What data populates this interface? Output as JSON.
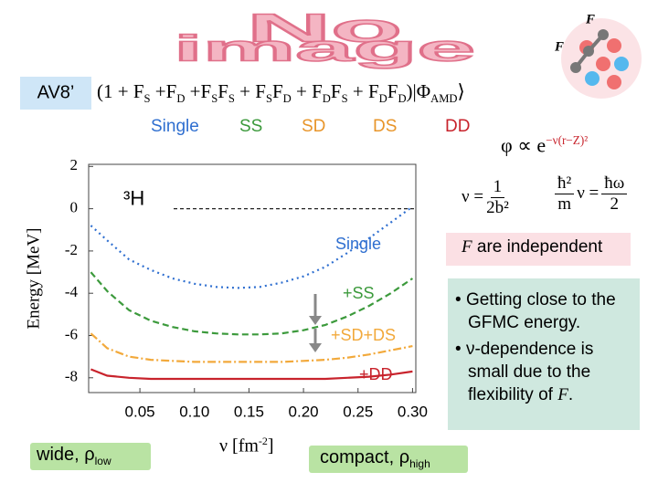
{
  "chart_data": {
    "type": "line",
    "xlabel": {
      "text": "ν [fm",
      "sup": "-2",
      "close": "]"
    },
    "ylabel": "Energy [MeV]",
    "x": [
      0.005,
      0.02,
      0.04,
      0.06,
      0.08,
      0.1,
      0.12,
      0.14,
      0.16,
      0.18,
      0.2,
      0.22,
      0.24,
      0.26,
      0.28,
      0.3
    ],
    "series": [
      {
        "name": "Single",
        "color": "#2f6fd0",
        "linestyle": "dotted",
        "values": [
          -0.8,
          -1.5,
          -2.4,
          -2.9,
          -3.3,
          -3.55,
          -3.7,
          -3.75,
          -3.7,
          -3.5,
          -3.2,
          -2.75,
          -2.1,
          -1.4,
          -0.65,
          0.1
        ]
      },
      {
        "name": "+SS",
        "color": "#3c9a3c",
        "linestyle": "dashed",
        "values": [
          -3.0,
          -3.9,
          -4.8,
          -5.3,
          -5.6,
          -5.8,
          -5.9,
          -5.95,
          -5.95,
          -5.9,
          -5.75,
          -5.5,
          -5.1,
          -4.6,
          -4.0,
          -3.3
        ]
      },
      {
        "name": "+SD+DS",
        "color": "#f2a93b",
        "linestyle": "dashdot",
        "values": [
          -5.9,
          -6.6,
          -7.0,
          -7.15,
          -7.2,
          -7.25,
          -7.25,
          -7.25,
          -7.25,
          -7.25,
          -7.2,
          -7.15,
          -7.05,
          -6.9,
          -6.7,
          -6.5
        ]
      },
      {
        "name": "+DD",
        "color": "#c8232c",
        "linestyle": "solid",
        "values": [
          -7.6,
          -7.9,
          -8.0,
          -8.05,
          -8.05,
          -8.05,
          -8.05,
          -8.05,
          -8.05,
          -8.05,
          -8.05,
          -8.05,
          -8.0,
          -7.95,
          -7.85,
          -7.7
        ]
      }
    ],
    "xlim": [
      0.003,
      0.303
    ],
    "ylim": [
      -8.7,
      2.1
    ],
    "xticks": [
      0.05,
      {
        "value": 0.1,
        "label": "0.10"
      },
      0.15,
      {
        "value": 0.2,
        "label": "0.20"
      },
      0.25,
      {
        "value": 0.3,
        "label": "0.30"
      }
    ],
    "yticks": [
      2,
      0,
      -2,
      -4,
      -6,
      -8
    ],
    "reference": {
      "value": 0,
      "label": "³H"
    }
  },
  "slide": {
    "placeholder": [
      "No",
      "image"
    ],
    "diagram_labels": [
      "F",
      "F"
    ],
    "model": "AV8’",
    "wavefunction": [
      {
        "text": "(1 + F",
        "sub": "S"
      },
      {
        "text": " +F",
        "sub": "D"
      },
      {
        "text": " +F",
        "sub": "S"
      },
      {
        "text": "F",
        "sub": "S"
      },
      {
        "text": " + F",
        "sub": "S"
      },
      {
        "text": "F",
        "sub": "D"
      },
      {
        "text": " + F",
        "sub": "D"
      },
      {
        "text": "F",
        "sub": "S"
      },
      {
        "text": " + F",
        "sub": "D"
      },
      {
        "text": "F",
        "sub": "D"
      },
      {
        "text": ")|Φ",
        "sub": "AMD"
      },
      {
        "text": "⟩"
      }
    ],
    "terms": [
      {
        "text": "Single",
        "color": "#2f6fd0"
      },
      {
        "text": "SS",
        "color": "#3c9a3c"
      },
      {
        "text": "SD",
        "color": "#e8952a"
      },
      {
        "text": "DS",
        "color": "#e8952a"
      },
      {
        "text": "DD",
        "color": "#c8232c"
      }
    ],
    "gaussian": {
      "text": "φ ∝ e",
      "sup": "−ν(r−Z)²"
    },
    "nu_def": {
      "lhs": "ν =",
      "num": "1",
      "den": "2b²"
    },
    "nu_rel": {
      "num": "ħ²",
      "den": "m",
      "mid": "ν =",
      "num2": "ħω",
      "den2": "2"
    },
    "note": [
      {
        "text": "F",
        "italic": true
      },
      {
        "text": " are independent"
      }
    ],
    "bullets": [
      [
        {
          "text": "Getting close to the GFMC energy."
        }
      ],
      [
        {
          "text": "ν-dependence is small due to the flexibility of "
        },
        {
          "text": "F",
          "italic": true
        },
        {
          "text": "."
        }
      ]
    ],
    "tags": [
      [
        {
          "text": "wide, ρ",
          "sub": "low"
        }
      ],
      [
        {
          "text": "compact, ρ",
          "sub": "high"
        }
      ]
    ]
  }
}
